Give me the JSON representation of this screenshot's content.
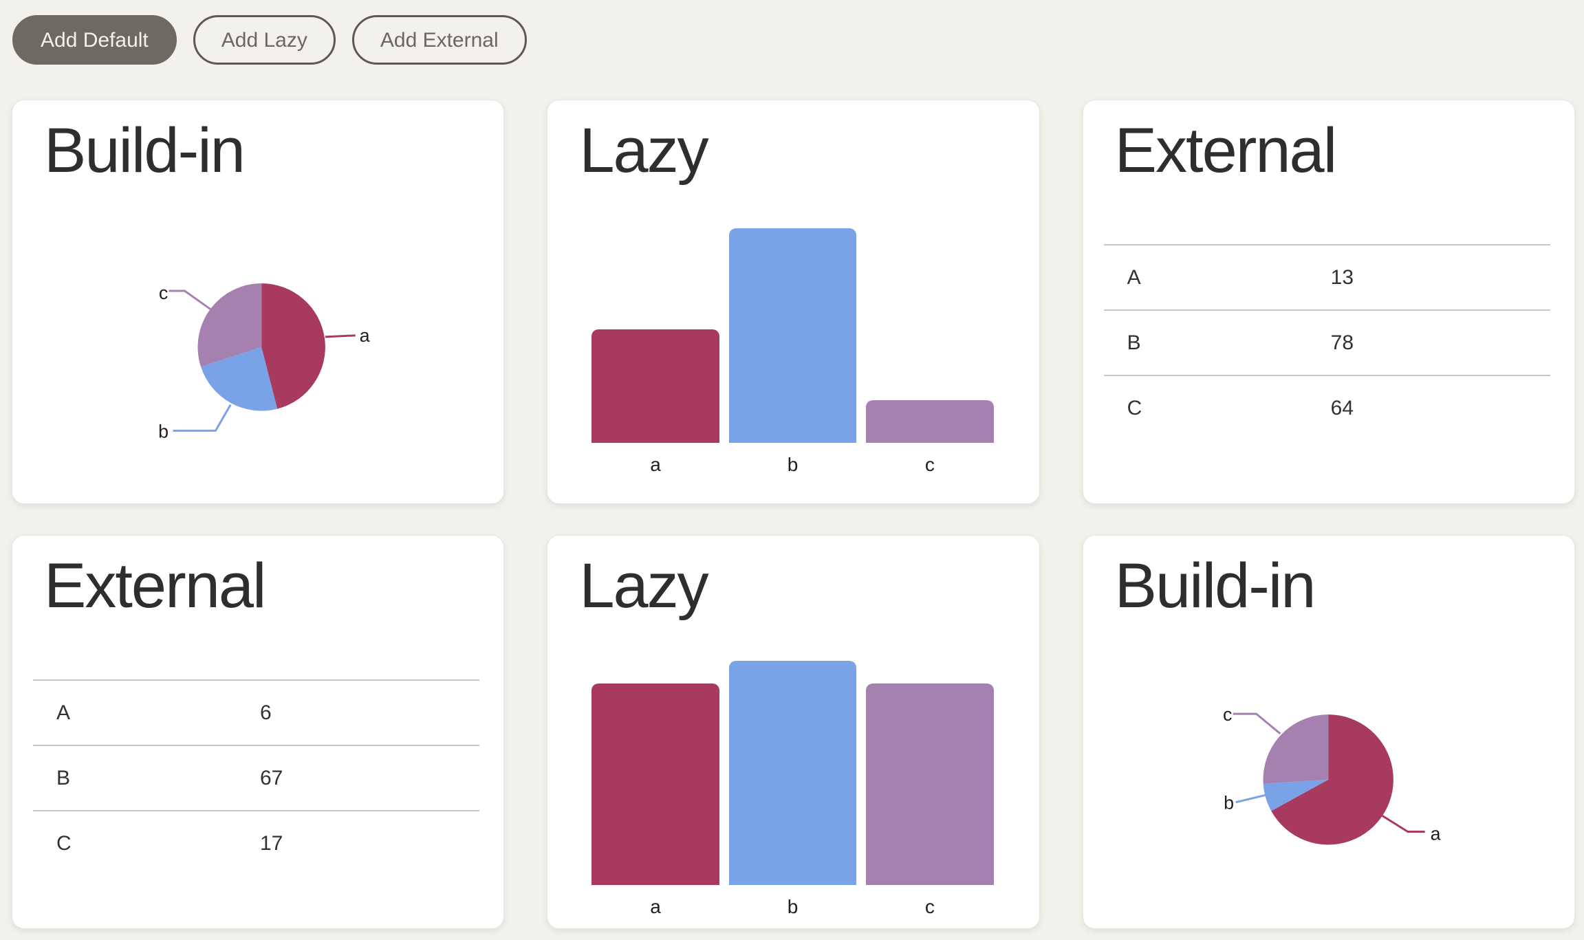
{
  "toolbar": {
    "buttons": [
      {
        "label": "Add Default",
        "variant": "filled"
      },
      {
        "label": "Add Lazy",
        "variant": "outline"
      },
      {
        "label": "Add External",
        "variant": "outline"
      }
    ]
  },
  "colors": {
    "background": "#f3f1ec",
    "card": "#ffffff",
    "title_text": "#2f2e2c",
    "body_text": "#323130",
    "table_line": "#cbc6ba",
    "button_filled_bg": "#6e6963",
    "button_filled_text": "#f4f2ed",
    "button_outline_border": "#5d5952",
    "button_outline_text": "#6b6661",
    "series_a": "#a83a5f",
    "series_b": "#7aa2e6",
    "series_c": "#a481ae"
  },
  "cards": [
    {
      "title": "Build-in",
      "widget": "pie"
    },
    {
      "title": "Lazy",
      "widget": "bar"
    },
    {
      "title": "External",
      "widget": "table",
      "rows": [
        {
          "label": "A",
          "value": "13"
        },
        {
          "label": "B",
          "value": "78"
        },
        {
          "label": "C",
          "value": "64"
        }
      ]
    },
    {
      "title": "External",
      "widget": "table",
      "rows": [
        {
          "label": "A",
          "value": "6"
        },
        {
          "label": "B",
          "value": "67"
        },
        {
          "label": "C",
          "value": "17"
        }
      ]
    },
    {
      "title": "Lazy",
      "widget": "bar"
    },
    {
      "title": "Build-in",
      "widget": "pie"
    }
  ],
  "chart_data": [
    {
      "type": "pie",
      "title": "Build-in",
      "categories": [
        "a",
        "b",
        "c"
      ],
      "values": [
        46,
        24,
        30
      ],
      "value_unit": "percent estimated from slice angles (no numbers shown)",
      "colors": [
        "#a83a5f",
        "#7aa2e6",
        "#a481ae"
      ],
      "legend_position": "none",
      "labels": "leader lines to a/b/c"
    },
    {
      "type": "bar",
      "title": "Lazy",
      "categories": [
        "a",
        "b",
        "c"
      ],
      "values": [
        53,
        100,
        20
      ],
      "value_unit": "percent of tallest bar, estimated (no y-axis shown)",
      "colors": [
        "#a83a5f",
        "#7aa2e6",
        "#a481ae"
      ],
      "xlabel": "",
      "ylabel": "",
      "grid": false,
      "axes_shown": false
    },
    {
      "type": "table",
      "title": "External",
      "columns": [
        "label",
        "value"
      ],
      "rows": [
        [
          "A",
          13
        ],
        [
          "B",
          78
        ],
        [
          "C",
          64
        ]
      ]
    },
    {
      "type": "table",
      "title": "External",
      "columns": [
        "label",
        "value"
      ],
      "rows": [
        [
          "A",
          6
        ],
        [
          "B",
          67
        ],
        [
          "C",
          17
        ]
      ]
    },
    {
      "type": "bar",
      "title": "Lazy",
      "categories": [
        "a",
        "b",
        "c"
      ],
      "values": [
        90,
        100,
        90
      ],
      "value_unit": "percent of tallest bar, estimated (no y-axis shown)",
      "colors": [
        "#a83a5f",
        "#7aa2e6",
        "#a481ae"
      ],
      "xlabel": "",
      "ylabel": "",
      "grid": false,
      "axes_shown": false
    },
    {
      "type": "pie",
      "title": "Build-in",
      "categories": [
        "a",
        "b",
        "c"
      ],
      "values": [
        67,
        7,
        26
      ],
      "value_unit": "percent estimated from slice angles (no numbers shown)",
      "colors": [
        "#a83a5f",
        "#7aa2e6",
        "#a481ae"
      ],
      "legend_position": "none",
      "labels": "leader lines to a/b/c"
    }
  ]
}
